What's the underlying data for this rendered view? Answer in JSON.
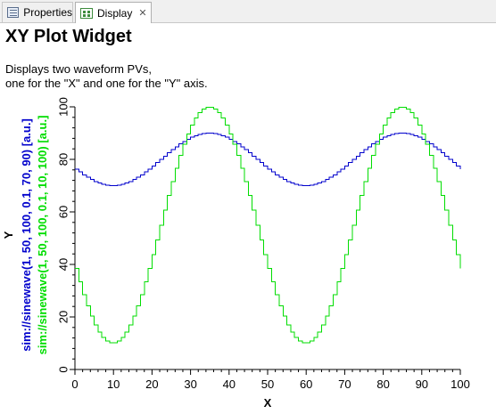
{
  "tabs": [
    {
      "label": "Properties",
      "icon": "properties-icon",
      "active": false
    },
    {
      "label": "Display",
      "icon": "display-icon",
      "active": true,
      "close": "✕"
    }
  ],
  "widget": {
    "title": "XY Plot Widget",
    "description_line1": "Displays two waveform PVs,",
    "description_line2": "one for the \"X\" and one for the \"Y\" axis."
  },
  "chart_data": {
    "type": "line",
    "step": true,
    "xlabel": "X",
    "ylabel": "Y",
    "xlim": [
      0,
      100
    ],
    "ylim": [
      0,
      100
    ],
    "xticks": [
      0,
      10,
      20,
      30,
      40,
      50,
      60,
      70,
      80,
      90,
      100
    ],
    "yticks": [
      0,
      20,
      40,
      60,
      80,
      100
    ],
    "series": [
      {
        "name": "sim://sinewave(1, 50, 100, 0.1, 70, 90) [a.u.]",
        "color": "#0000cc",
        "wave": {
          "period": 50,
          "min": 70,
          "max": 90,
          "peak_x": 34.5
        }
      },
      {
        "name": "sim://sinewave(1, 50, 100, 0.1, 10, 100) [a.u.]",
        "color": "#00dd00",
        "wave": {
          "period": 50,
          "min": 10,
          "max": 100,
          "peak_x": 34.5
        }
      }
    ]
  }
}
